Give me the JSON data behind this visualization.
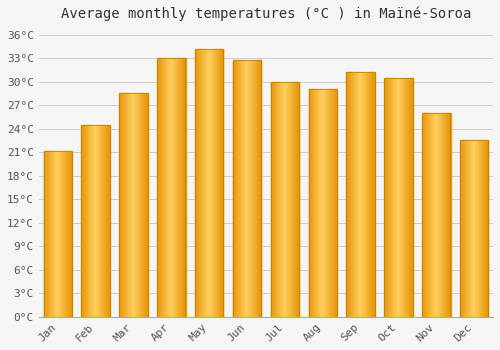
{
  "title": "Average monthly temperatures (°C ) in Maïné-Soroa",
  "months": [
    "Jan",
    "Feb",
    "Mar",
    "Apr",
    "May",
    "Jun",
    "Jul",
    "Aug",
    "Sep",
    "Oct",
    "Nov",
    "Dec"
  ],
  "values": [
    21.2,
    24.5,
    28.5,
    33.0,
    34.2,
    32.7,
    30.0,
    29.0,
    31.2,
    30.5,
    26.0,
    22.5
  ],
  "bar_color_center": "#FFD060",
  "bar_color_edge": "#E8960A",
  "bar_outline_color": "#B8860B",
  "background_color": "#f5f5f5",
  "grid_color": "#cccccc",
  "title_fontsize": 10,
  "tick_fontsize": 8,
  "tick_color": "#555555",
  "ylim": [
    0,
    37
  ],
  "yticks": [
    0,
    3,
    6,
    9,
    12,
    15,
    18,
    21,
    24,
    27,
    30,
    33,
    36
  ],
  "ytick_labels": [
    "0°C",
    "3°C",
    "6°C",
    "9°C",
    "12°C",
    "15°C",
    "18°C",
    "21°C",
    "24°C",
    "27°C",
    "30°C",
    "33°C",
    "36°C"
  ]
}
